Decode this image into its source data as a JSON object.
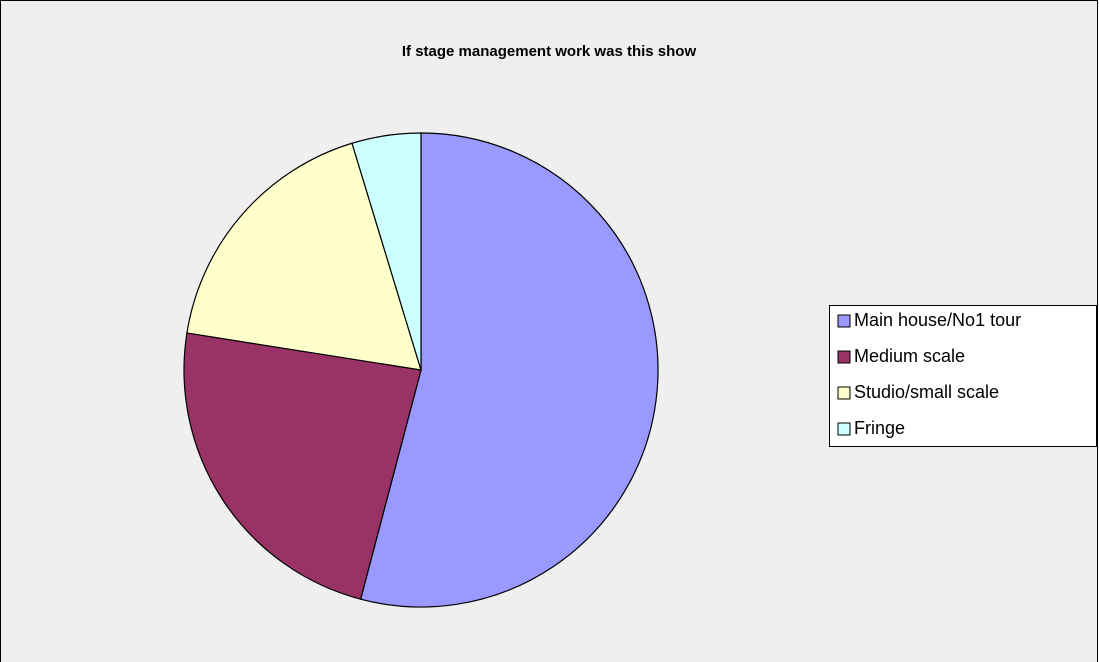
{
  "chart_data": {
    "type": "pie",
    "title": "If stage management work was this show",
    "categories": [
      "Main house/No1 tour",
      "Medium scale",
      "Studio/small scale",
      "Fringe"
    ],
    "values": [
      54.1,
      23.4,
      17.8,
      4.7
    ],
    "colors": [
      "#9999ff",
      "#993366",
      "#ffffcc",
      "#ccffff"
    ],
    "legend": "right"
  }
}
